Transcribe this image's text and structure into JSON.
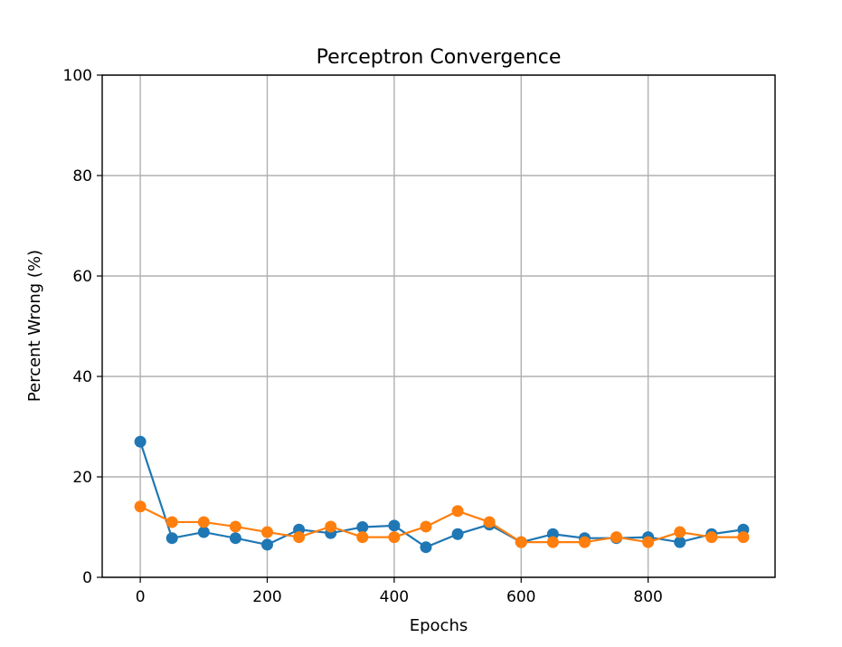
{
  "chart_data": {
    "type": "line",
    "title": "Perceptron Convergence",
    "xlabel": "Epochs",
    "ylabel": "Percent Wrong (%)",
    "xlim": [
      -60,
      1000
    ],
    "ylim": [
      0,
      100
    ],
    "x_ticks": [
      0,
      200,
      400,
      600,
      800
    ],
    "y_ticks": [
      0,
      20,
      40,
      60,
      80,
      100
    ],
    "grid": true,
    "x": [
      0,
      50,
      100,
      150,
      200,
      250,
      300,
      350,
      400,
      450,
      500,
      550,
      600,
      650,
      700,
      750,
      800,
      850,
      900,
      950
    ],
    "series": [
      {
        "color": "#1f77b4",
        "marker": "circle",
        "values": [
          27.0,
          7.8,
          9.0,
          7.8,
          6.5,
          9.5,
          8.8,
          10.0,
          10.3,
          6.0,
          8.6,
          10.5,
          7.0,
          8.6,
          7.8,
          7.8,
          8.0,
          7.0,
          8.6,
          9.5
        ]
      },
      {
        "color": "#ff7f0e",
        "marker": "circle",
        "values": [
          14.1,
          11.0,
          11.0,
          10.1,
          9.0,
          8.0,
          10.1,
          8.0,
          8.0,
          10.1,
          13.2,
          11.0,
          7.0,
          7.0,
          7.0,
          8.0,
          7.0,
          9.0,
          8.0,
          8.0
        ]
      }
    ]
  }
}
